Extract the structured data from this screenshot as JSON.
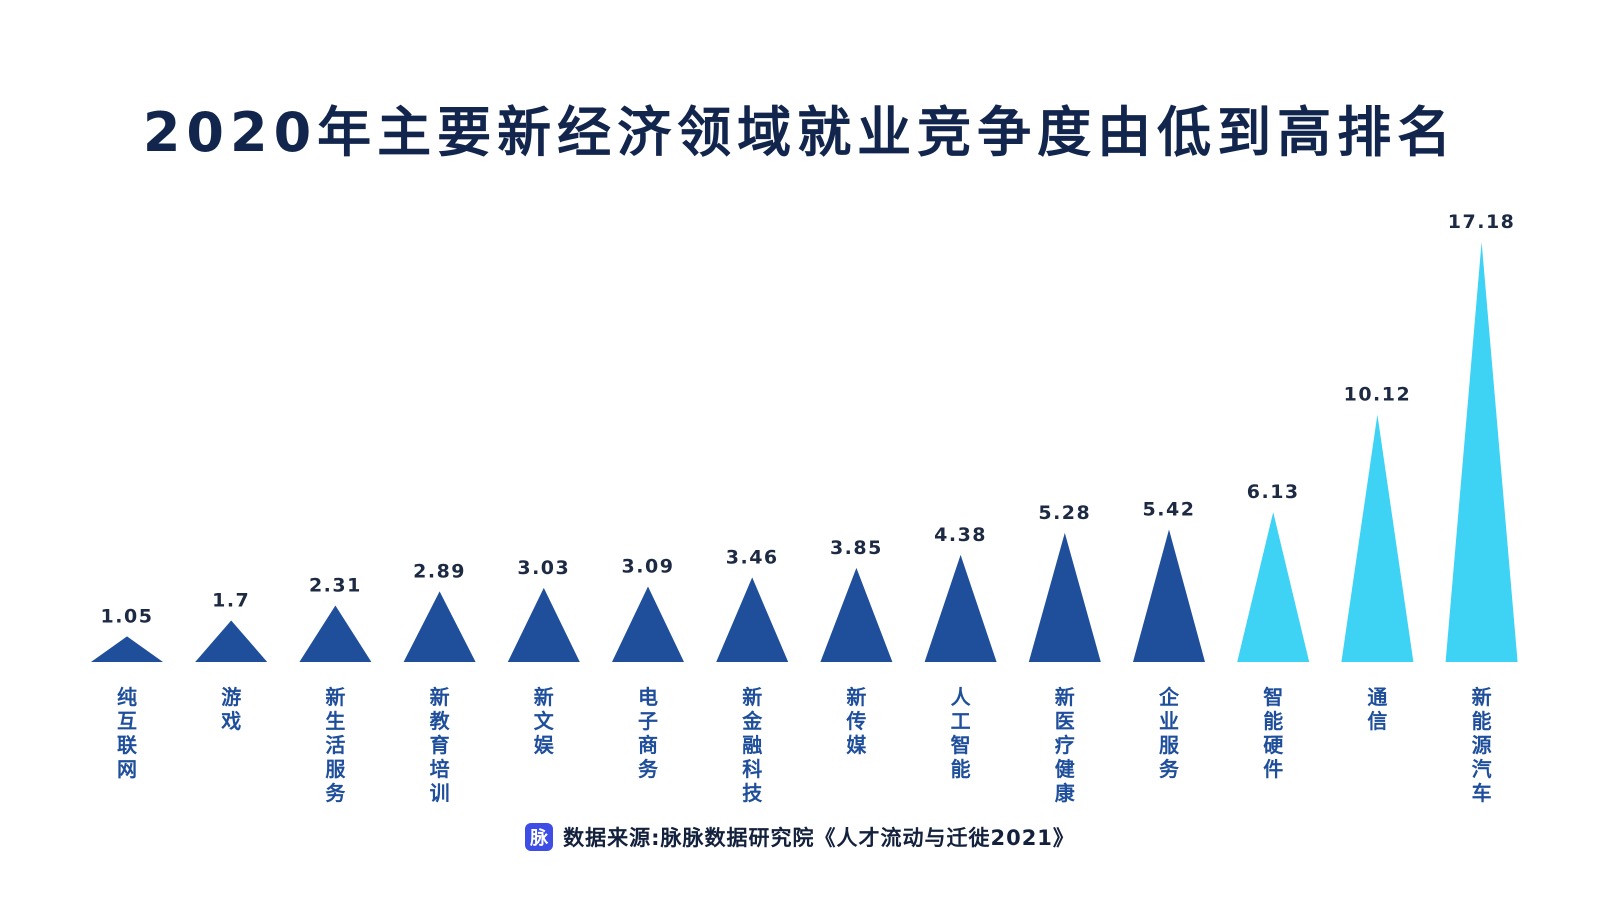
{
  "chart_data": {
    "type": "bar",
    "title": "2020年主要新经济领域就业竞争度由低到高排名",
    "categories": [
      "纯互联网",
      "游戏",
      "新生活服务",
      "新教育培训",
      "新文娱",
      "电子商务",
      "新金融科技",
      "新传媒",
      "人工智能",
      "新医疗健康",
      "企业服务",
      "智能硬件",
      "通信",
      "新能源汽车"
    ],
    "values": [
      1.05,
      1.7,
      2.31,
      2.89,
      3.03,
      3.09,
      3.46,
      3.85,
      4.38,
      5.28,
      5.42,
      6.13,
      10.12,
      17.18
    ],
    "value_labels": [
      "1.05",
      "1.7",
      "2.31",
      "2.89",
      "3.03",
      "3.09",
      "3.46",
      "3.85",
      "4.38",
      "5.28",
      "5.42",
      "6.13",
      "10.12",
      "17.18"
    ],
    "colors": [
      "#1f4f9b",
      "#1f4f9b",
      "#1f4f9b",
      "#1f4f9b",
      "#1f4f9b",
      "#1f4f9b",
      "#1f4f9b",
      "#1f4f9b",
      "#1f4f9b",
      "#1f4f9b",
      "#1f4f9b",
      "#3ed2f5",
      "#3ed2f5",
      "#3ed2f5"
    ],
    "marker": "triangle",
    "xlabel": "",
    "ylabel": "",
    "ylim": [
      0,
      17.18
    ],
    "grid": false
  },
  "footer": {
    "logo_text": "脉",
    "source_text": "数据来源:脉脉数据研究院《人才流动与迁徙2021》"
  }
}
